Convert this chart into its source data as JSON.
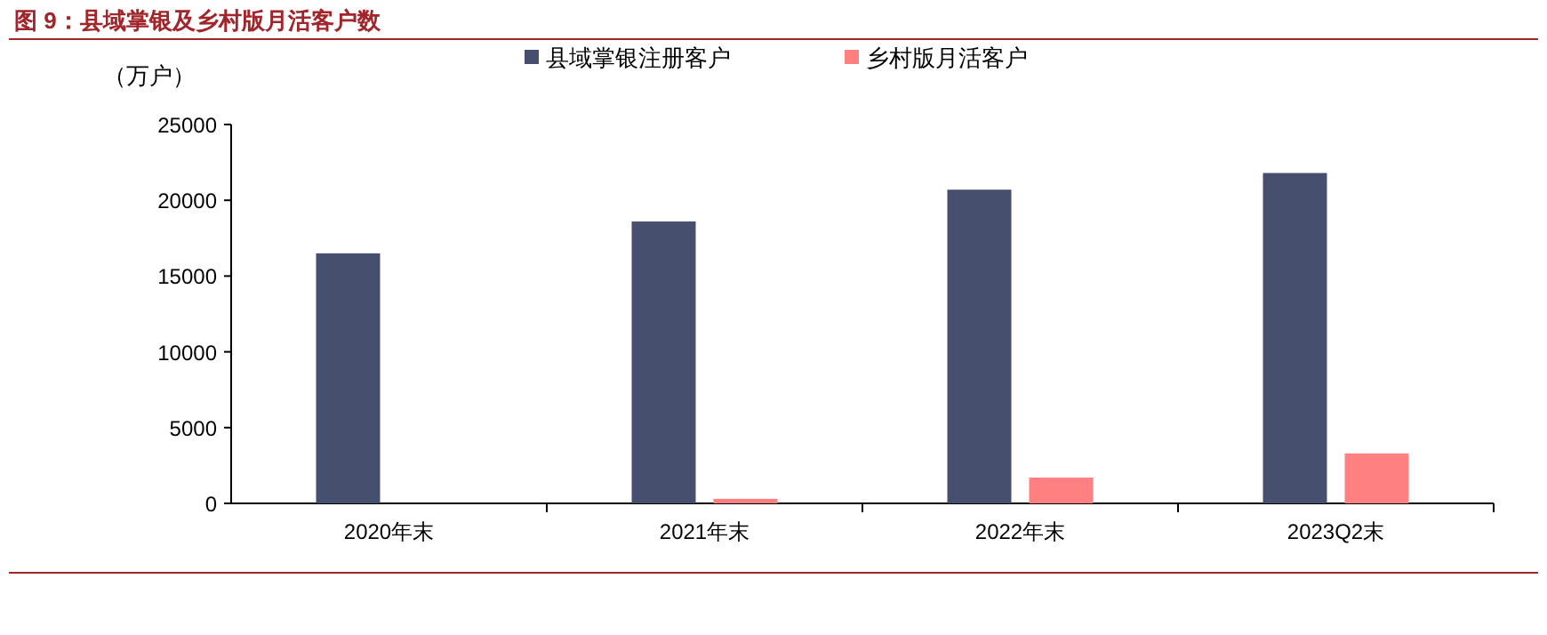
{
  "chart_data": {
    "type": "bar",
    "title": "图 9：县域掌银及乡村版月活客户数",
    "ylabel": "（万户）",
    "categories": [
      "2020年末",
      "2021年末",
      "2022年末",
      "2023Q2末"
    ],
    "series": [
      {
        "name": "县域掌银注册客户",
        "color": "#464f6e",
        "values": [
          16500,
          18600,
          20700,
          21800
        ]
      },
      {
        "name": "乡村版月活客户",
        "color": "#ff8080",
        "values": [
          null,
          300,
          1700,
          3300
        ]
      }
    ],
    "ylim": [
      0,
      25000
    ],
    "yticks": [
      0,
      5000,
      10000,
      15000,
      20000,
      25000
    ],
    "grid": false,
    "legend": "top"
  }
}
